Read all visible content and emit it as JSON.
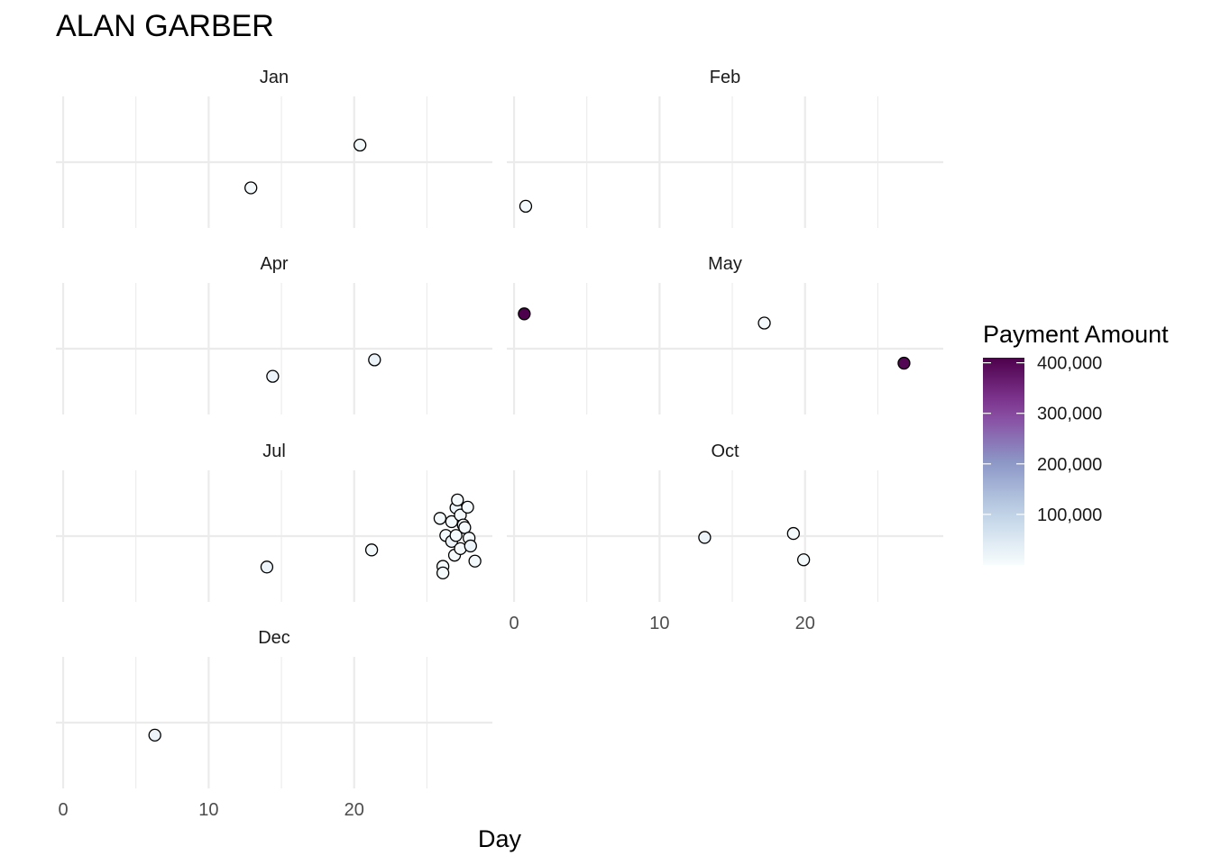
{
  "chart_data": {
    "type": "scatter",
    "title": "ALAN GARBER",
    "xlabel": "Day",
    "ylabel": "",
    "xlim": [
      -0.5,
      29.5
    ],
    "x_ticks": [
      "0",
      "10",
      "20"
    ],
    "y_jitter_range": [
      -1,
      1
    ],
    "grid": true,
    "legend": {
      "title": "Payment Amount",
      "placement": "right",
      "color_low": "#f7fcfd",
      "color_high": "#4d004b",
      "range": [
        0,
        410000
      ],
      "ticks": [
        100000,
        200000,
        300000,
        400000
      ],
      "tick_labels": [
        "100,000",
        "200,000",
        "300,000",
        "400,000"
      ]
    },
    "facets": [
      {
        "label": "Jan",
        "points": [
          {
            "day": 12.9,
            "y": -0.39,
            "amount": 5000
          },
          {
            "day": 20.4,
            "y": 0.26,
            "amount": 5000
          }
        ]
      },
      {
        "label": "Feb",
        "points": [
          {
            "day": 0.8,
            "y": -0.67,
            "amount": 5000
          }
        ]
      },
      {
        "label": "Apr",
        "points": [
          {
            "day": 14.4,
            "y": -0.42,
            "amount": 20000
          },
          {
            "day": 21.4,
            "y": -0.17,
            "amount": 20000
          }
        ]
      },
      {
        "label": "May",
        "points": [
          {
            "day": 0.7,
            "y": 0.53,
            "amount": 410000
          },
          {
            "day": 17.2,
            "y": 0.39,
            "amount": 5000
          },
          {
            "day": 26.8,
            "y": -0.22,
            "amount": 400000
          }
        ]
      },
      {
        "label": "Jul",
        "points": [
          {
            "day": 14.0,
            "y": -0.47,
            "amount": 20000
          },
          {
            "day": 21.2,
            "y": -0.21,
            "amount": 5000
          },
          {
            "day": 26.1,
            "y": -0.46,
            "amount": 5000
          },
          {
            "day": 26.1,
            "y": -0.56,
            "amount": 5000
          },
          {
            "day": 25.9,
            "y": 0.27,
            "amount": 5000
          },
          {
            "day": 26.3,
            "y": 0.01,
            "amount": 5000
          },
          {
            "day": 26.7,
            "y": 0.22,
            "amount": 5000
          },
          {
            "day": 26.7,
            "y": -0.08,
            "amount": 20000
          },
          {
            "day": 26.9,
            "y": -0.29,
            "amount": 5000
          },
          {
            "day": 27.0,
            "y": 0.43,
            "amount": 20000
          },
          {
            "day": 27.1,
            "y": 0.55,
            "amount": 5000
          },
          {
            "day": 27.0,
            "y": 0.01,
            "amount": 5000
          },
          {
            "day": 27.3,
            "y": 0.32,
            "amount": 5000
          },
          {
            "day": 27.3,
            "y": -0.19,
            "amount": 5000
          },
          {
            "day": 27.5,
            "y": 0.17,
            "amount": 5000
          },
          {
            "day": 27.6,
            "y": 0.13,
            "amount": 5000
          },
          {
            "day": 27.8,
            "y": 0.44,
            "amount": 5000
          },
          {
            "day": 27.9,
            "y": -0.03,
            "amount": 5000
          },
          {
            "day": 28.0,
            "y": -0.15,
            "amount": 20000
          },
          {
            "day": 28.3,
            "y": -0.38,
            "amount": 5000
          }
        ]
      },
      {
        "label": "Oct",
        "points": [
          {
            "day": 13.1,
            "y": -0.02,
            "amount": 20000
          },
          {
            "day": 19.2,
            "y": 0.04,
            "amount": 5000
          },
          {
            "day": 19.9,
            "y": -0.36,
            "amount": 5000
          }
        ]
      },
      {
        "label": "Dec",
        "points": [
          {
            "day": 6.3,
            "y": -0.19,
            "amount": 20000
          }
        ]
      }
    ]
  }
}
